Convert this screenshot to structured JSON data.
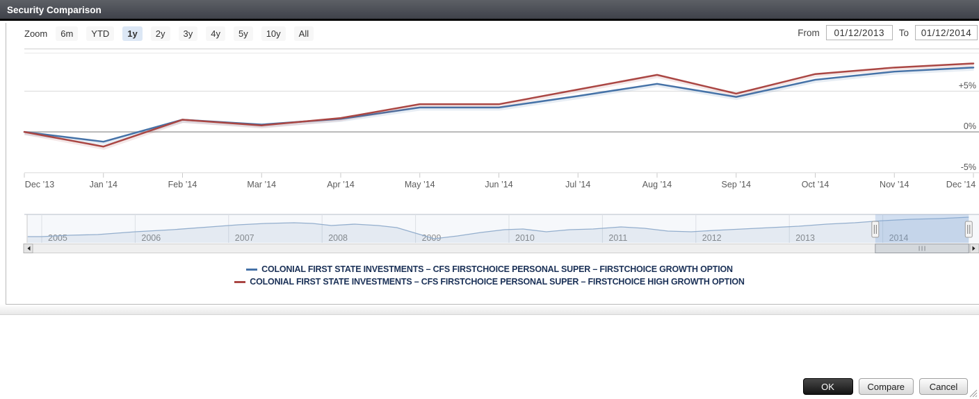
{
  "titlebar": {
    "title": "Security Comparison"
  },
  "toolbar": {
    "zoom_label": "Zoom",
    "zoom_buttons": [
      "6m",
      "YTD",
      "1y",
      "2y",
      "3y",
      "4y",
      "5y",
      "10y",
      "All"
    ],
    "selected_zoom": "1y",
    "from_label": "From",
    "from_value": "01/12/2013",
    "to_label": "To",
    "to_value": "01/12/2014"
  },
  "chart_data": {
    "type": "line",
    "title": "",
    "xlabel": "",
    "ylabel": "",
    "x_categories": [
      "Dec ’13",
      "Jan ’14",
      "Feb ’14",
      "Mar ’14",
      "Apr ’14",
      "May ’14",
      "Jun ’14",
      "Jul ’14",
      "Aug ’14",
      "Sep ’14",
      "Oct ’14",
      "Nov ’14",
      "Dec ’14"
    ],
    "unit": "percent change",
    "series": [
      {
        "name": "COLONIAL FIRST STATE INVESTMENTS – CFS FIRSTCHOICE PERSONAL SUPER – FIRSTCHOICE GROWTH OPTION",
        "color": "#4572a7",
        "values": [
          0,
          -1.2,
          1.5,
          0.9,
          1.6,
          3.0,
          3.0,
          4.4,
          5.9,
          4.3,
          6.4,
          7.4,
          7.9
        ]
      },
      {
        "name": "COLONIAL FIRST STATE INVESTMENTS – CFS FIRSTCHOICE PERSONAL SUPER – FIRSTCHOICE HIGH GROWTH OPTION",
        "color": "#aa4643",
        "values": [
          0,
          -1.8,
          1.5,
          0.8,
          1.7,
          3.4,
          3.4,
          5.2,
          7.0,
          4.7,
          7.1,
          7.9,
          8.4
        ]
      }
    ],
    "yticks": [
      {
        "label": "+5%",
        "value": 5
      },
      {
        "label": "0%",
        "value": 0
      },
      {
        "label": "-5%",
        "value": -5
      }
    ],
    "ylim": [
      -5.1,
      9.8
    ],
    "grid": true,
    "legend_position": "bottom-center",
    "navigator": {
      "year_labels": [
        "2005",
        "2006",
        "2007",
        "2008",
        "2009",
        "2010",
        "2011",
        "2012",
        "2013",
        "2014"
      ],
      "x_range": [
        2004.85,
        2014.97
      ],
      "selected_range": [
        2013.92,
        2014.92
      ],
      "points": [
        [
          2004.85,
          9
        ],
        [
          2005.0,
          9
        ],
        [
          2005.3,
          11
        ],
        [
          2005.6,
          12
        ],
        [
          2006.0,
          16
        ],
        [
          2006.4,
          19
        ],
        [
          2006.8,
          23
        ],
        [
          2007.1,
          26
        ],
        [
          2007.4,
          28
        ],
        [
          2007.7,
          29
        ],
        [
          2007.9,
          28
        ],
        [
          2008.1,
          25
        ],
        [
          2008.35,
          27
        ],
        [
          2008.6,
          25
        ],
        [
          2008.8,
          22
        ],
        [
          2009.0,
          14
        ],
        [
          2009.2,
          6
        ],
        [
          2009.45,
          10
        ],
        [
          2009.7,
          15
        ],
        [
          2009.95,
          19
        ],
        [
          2010.15,
          20
        ],
        [
          2010.4,
          16
        ],
        [
          2010.65,
          19
        ],
        [
          2010.9,
          20
        ],
        [
          2011.2,
          23
        ],
        [
          2011.45,
          21
        ],
        [
          2011.7,
          17
        ],
        [
          2011.95,
          16
        ],
        [
          2012.2,
          18
        ],
        [
          2012.5,
          20
        ],
        [
          2012.8,
          22
        ],
        [
          2013.1,
          24
        ],
        [
          2013.4,
          27
        ],
        [
          2013.7,
          29
        ],
        [
          2014.0,
          32
        ],
        [
          2014.3,
          34
        ],
        [
          2014.6,
          35
        ],
        [
          2014.92,
          37
        ]
      ]
    }
  },
  "colors": {
    "selected_zoom_bg": "#dce7f5",
    "navigator_selection": "#7da5d7",
    "zero_line": "#b8b8b8"
  },
  "footer": {
    "buttons": [
      {
        "label": "OK",
        "primary": true
      },
      {
        "label": "Compare",
        "primary": false
      },
      {
        "label": "Cancel",
        "primary": false
      }
    ]
  }
}
